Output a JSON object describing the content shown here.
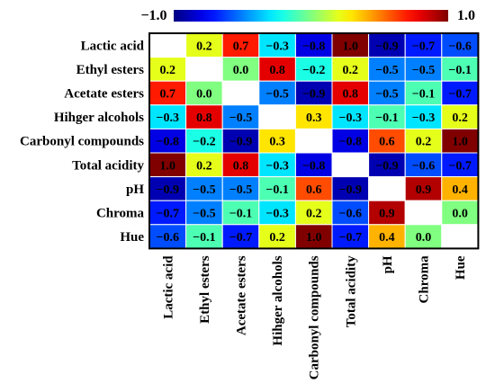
{
  "chart_data": {
    "type": "heatmap",
    "title": "",
    "xlabel": "",
    "ylabel": "",
    "variables": [
      "Lactic acid",
      "Ethyl esters",
      "Acetate esters",
      "Hihger alcohols",
      "Carbonyl compounds",
      "Total acidity",
      "pH",
      "Chroma",
      "Hue"
    ],
    "matrix": [
      [
        null,
        0.2,
        0.7,
        -0.3,
        -0.8,
        1.0,
        -0.9,
        -0.7,
        -0.6
      ],
      [
        0.2,
        null,
        0.0,
        0.8,
        -0.2,
        0.2,
        -0.5,
        -0.5,
        -0.1
      ],
      [
        0.7,
        0.0,
        null,
        -0.5,
        -0.9,
        0.8,
        -0.5,
        -0.1,
        -0.7
      ],
      [
        -0.3,
        0.8,
        -0.5,
        null,
        0.3,
        -0.3,
        -0.1,
        -0.3,
        0.2
      ],
      [
        -0.8,
        -0.2,
        -0.9,
        0.3,
        null,
        -0.8,
        0.6,
        0.2,
        1.0
      ],
      [
        1.0,
        0.2,
        0.8,
        -0.3,
        -0.8,
        null,
        -0.9,
        -0.6,
        -0.7
      ],
      [
        -0.9,
        -0.5,
        -0.5,
        -0.1,
        0.6,
        -0.9,
        null,
        0.9,
        0.4
      ],
      [
        -0.7,
        -0.5,
        -0.1,
        -0.3,
        0.2,
        -0.6,
        0.9,
        null,
        0.0
      ],
      [
        -0.6,
        -0.1,
        -0.7,
        0.2,
        1.0,
        -0.7,
        0.4,
        0.0,
        null
      ]
    ],
    "value_range": [
      -1.0,
      1.0
    ],
    "colorbar": {
      "min_label": "−1.0",
      "max_label": "1.0",
      "colormap": "jet"
    },
    "diagonal": "blank"
  }
}
